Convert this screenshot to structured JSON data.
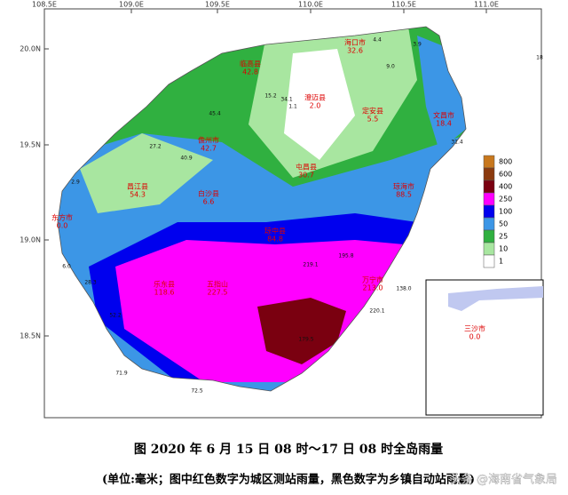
{
  "map": {
    "x_ticks": [
      "108.5E",
      "109.0E",
      "109.5E",
      "110.0E",
      "110.5E",
      "111.0E"
    ],
    "y_ticks": [
      "20.0N",
      "19.5N",
      "19.0N",
      "18.5N"
    ],
    "legend": {
      "labels": [
        "800",
        "600",
        "400",
        "250",
        "100",
        "50",
        "25",
        "10",
        "1"
      ],
      "colors": [
        "#c8781e",
        "#8b3a0e",
        "#7a0010",
        "#ff00ff",
        "#0000ee",
        "#3c96e6",
        "#30b040",
        "#a8e6a0",
        "#ffffff"
      ]
    },
    "cities": [
      {
        "name": "海口市",
        "value": "32.6"
      },
      {
        "name": "临高县",
        "value": "42.8"
      },
      {
        "name": "澄迈县",
        "value": "2.0"
      },
      {
        "name": "定安县",
        "value": "5.5"
      },
      {
        "name": "文昌市",
        "value": "18.4"
      },
      {
        "name": "儋州市",
        "value": "42.7"
      },
      {
        "name": "屯昌县",
        "value": "30.7"
      },
      {
        "name": "琼海市",
        "value": "88.5"
      },
      {
        "name": "白沙县",
        "value": "6.6"
      },
      {
        "name": "昌江县",
        "value": "54.3"
      },
      {
        "name": "东方市",
        "value": "0.0"
      },
      {
        "name": "琼中县",
        "value": "84.8"
      },
      {
        "name": "万宁市",
        "value": "213.0"
      },
      {
        "name": "五指山",
        "value": "227.5"
      },
      {
        "name": "乐东县",
        "value": "118.6"
      },
      {
        "name": "三沙市",
        "value": "0.0"
      }
    ],
    "stations": [
      "4.4",
      "3.9",
      "9.0",
      "1.1",
      "15.2",
      "34.1",
      "45.4",
      "27.2",
      "40.9",
      "2.9",
      "6.0",
      "28.3",
      "52.2",
      "71.9",
      "72.5",
      "219.1",
      "220.1",
      "179.5",
      "31.4",
      "18",
      "138.0",
      "195.8"
    ]
  },
  "caption": {
    "line1": "图 2020 年 6 月 15 日 08 时～17 日 08 时全岛雨量",
    "line2": "(单位:毫米；图中红色数字为城区测站雨量，黑色数字为乡镇自动站雨量)"
  },
  "watermark": "头条 @海南省气象局"
}
